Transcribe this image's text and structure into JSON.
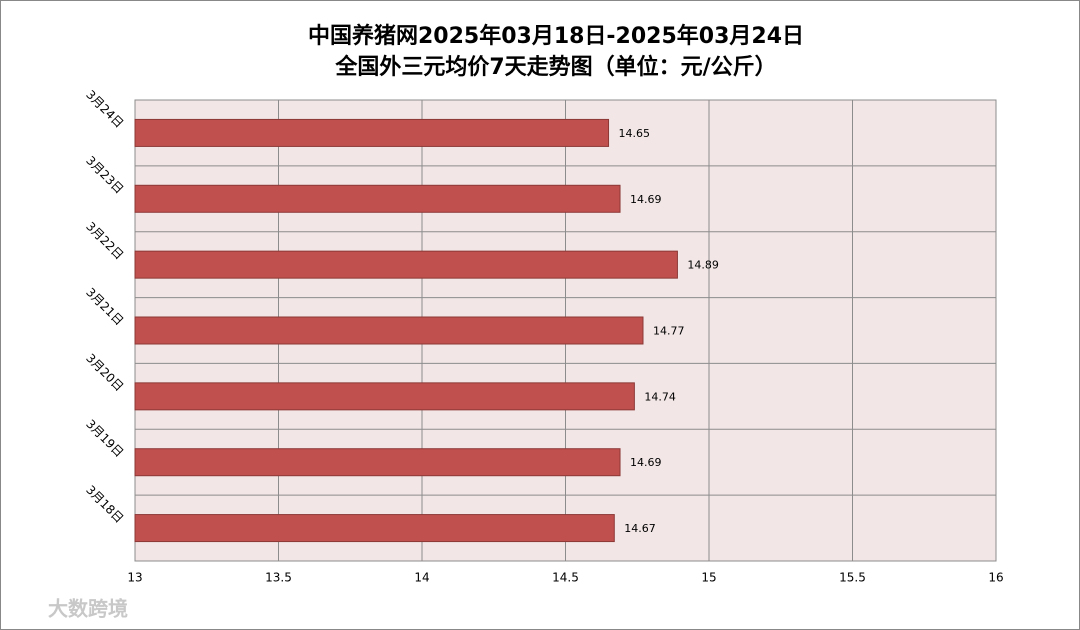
{
  "chart_data": {
    "type": "bar",
    "orientation": "horizontal",
    "title": "中国养猪网2025年03月18日-2025年03月24日",
    "subtitle": "全国外三元均价7天走势图（单位：元/公斤）",
    "categories": [
      "3月24日",
      "3月23日",
      "3月22日",
      "3月21日",
      "3月20日",
      "3月19日",
      "3月18日"
    ],
    "values": [
      14.65,
      14.69,
      14.89,
      14.77,
      14.74,
      14.69,
      14.67
    ],
    "color": "#c0504d",
    "xlim": [
      13,
      16
    ],
    "xticks": [
      13,
      13.5,
      14,
      14.5,
      15,
      15.5,
      16
    ],
    "grid": true,
    "watermark": "大数跨境"
  }
}
